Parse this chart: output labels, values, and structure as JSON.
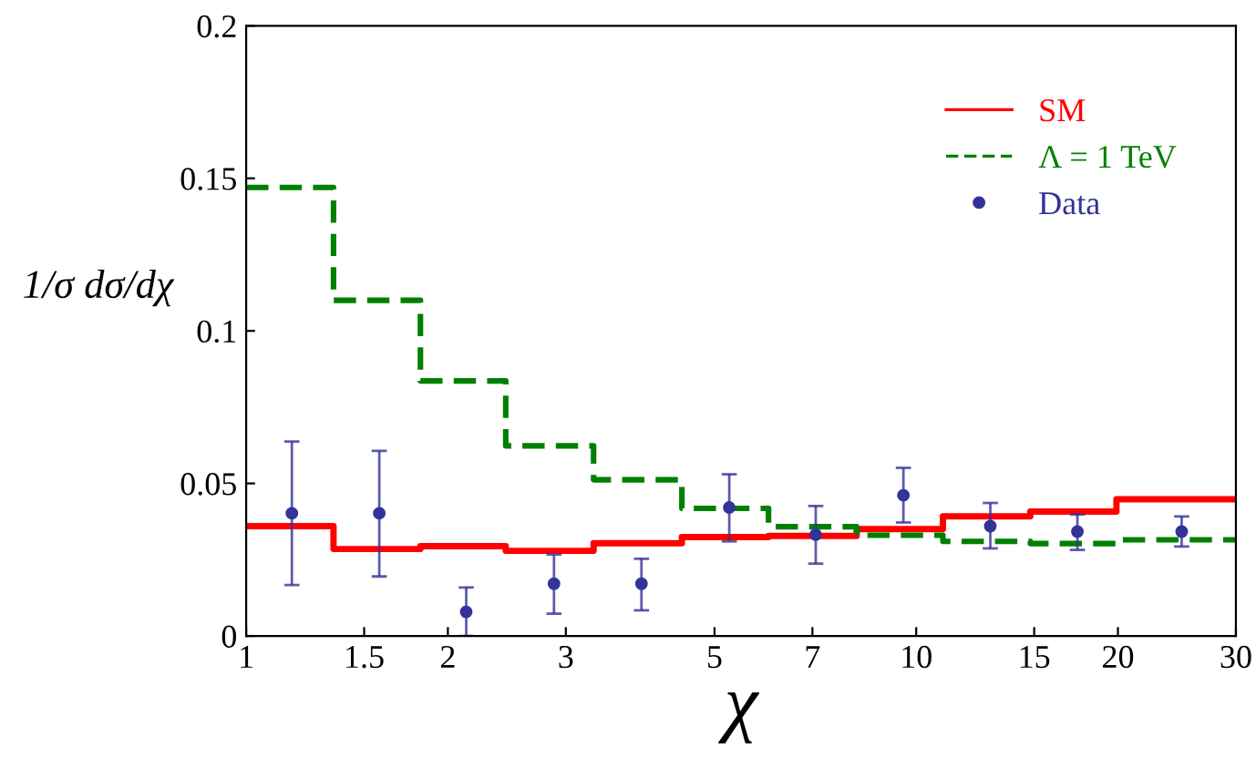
{
  "chart_data": {
    "type": "step",
    "xlabel": "χ",
    "ylabel": "1/σ dσ/dχ",
    "log": "x",
    "xlim": [
      1,
      30
    ],
    "ylim": [
      0,
      0.2
    ],
    "xticks": [
      1,
      1.5,
      2,
      3,
      5,
      7,
      10,
      15,
      20,
      30
    ],
    "yticks": [
      0,
      0.05,
      0.1,
      0.15,
      0.2
    ],
    "grid": false,
    "legend": "top right",
    "series": [
      {
        "name": "SM",
        "color": "#ff0000",
        "line_style": "solid",
        "x": [
          1,
          1.35,
          1.82,
          2.44,
          3.3,
          4.47,
          6.02,
          8.15,
          10.96,
          14.8,
          19.9,
          30
        ],
        "values": [
          0.036,
          0.0285,
          0.0294,
          0.0279,
          0.0304,
          0.0324,
          0.0328,
          0.035,
          0.0392,
          0.0408,
          0.0448,
          0.0448
        ]
      },
      {
        "name": "Λ = 1 TeV",
        "color": "#008000",
        "line_style": "dashed",
        "x": [
          1,
          1.35,
          1.82,
          2.44,
          3.3,
          4.47,
          6.02,
          8.15,
          10.96,
          14.8,
          19.9,
          30
        ],
        "values": [
          0.147,
          0.11,
          0.0836,
          0.0623,
          0.0512,
          0.0418,
          0.0358,
          0.033,
          0.031,
          0.0303,
          0.0315,
          0.0315
        ]
      },
      {
        "name": "Data",
        "color": "#333399",
        "type": "scatter",
        "marker": "circle",
        "x": [
          1.17,
          1.58,
          2.13,
          2.88,
          3.89,
          5.26,
          7.08,
          9.57,
          12.9,
          17.4,
          24.9
        ],
        "values": [
          0.0402,
          0.0402,
          0.0079,
          0.0171,
          0.0171,
          0.0421,
          0.0332,
          0.0461,
          0.036,
          0.0342,
          0.0342
        ],
        "errors": [
          [
            0.0167,
            0.0637
          ],
          [
            0.0195,
            0.0607
          ],
          [
            0,
            0.0159
          ],
          [
            0.0073,
            0.0267
          ],
          [
            0.0084,
            0.0253
          ],
          [
            0.031,
            0.053
          ],
          [
            0.0237,
            0.0426
          ],
          [
            0.0372,
            0.0551
          ],
          [
            0.0287,
            0.0436
          ],
          [
            0.0282,
            0.0398
          ],
          [
            0.0293,
            0.0392
          ]
        ]
      }
    ]
  }
}
